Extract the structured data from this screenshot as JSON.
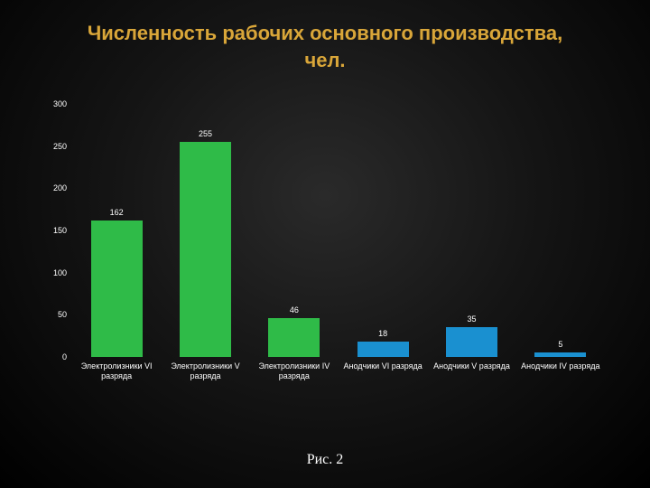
{
  "title": {
    "line1": "Численность рабочих основного производства,",
    "line2": "чел.",
    "color": "#d9a639",
    "fontsize": 22,
    "weight": "bold"
  },
  "chart": {
    "type": "bar",
    "background_color": "transparent",
    "ylim": [
      0,
      300
    ],
    "ytick_step": 50,
    "yticks": [
      0,
      50,
      100,
      150,
      200,
      250,
      300
    ],
    "ytick_color": "#ffffff",
    "ytick_fontsize": 9,
    "axis_line_color": "#5a5a5a",
    "bar_width": 0.58,
    "bar_label_color": "#ffffff",
    "bar_label_fontsize": 9,
    "cat_label_color": "#ffffff",
    "cat_label_fontsize": 9,
    "series": [
      {
        "category_lines": [
          "Электролизники VI",
          "разряда"
        ],
        "value": 162,
        "color": "#2fbb48"
      },
      {
        "category_lines": [
          "Электролизники V",
          "разряда"
        ],
        "value": 255,
        "color": "#2fbb48"
      },
      {
        "category_lines": [
          "Электролизники IV",
          "разряда"
        ],
        "value": 46,
        "color": "#2fbb48"
      },
      {
        "category_lines": [
          "Анодчики VI разряда"
        ],
        "value": 18,
        "color": "#1a90d0"
      },
      {
        "category_lines": [
          "Анодчики V разряда"
        ],
        "value": 35,
        "color": "#1a90d0"
      },
      {
        "category_lines": [
          "Анодчики IV разряда"
        ],
        "value": 5,
        "color": "#1a90d0"
      }
    ]
  },
  "caption": {
    "text": "Рис. 2",
    "fontsize": 16
  }
}
